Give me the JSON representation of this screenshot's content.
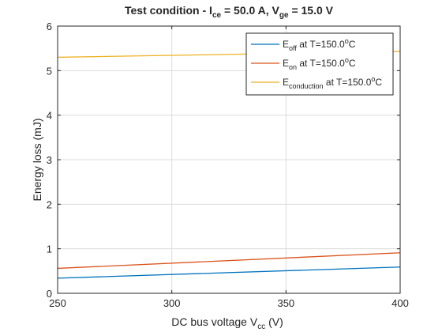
{
  "chart_data": {
    "type": "line",
    "title_parts": [
      "Test condition -  I",
      "ce",
      " = 50.0 A, V",
      "ge",
      " = 15.0 V"
    ],
    "xlabel_parts": [
      "DC bus voltage V",
      "cc",
      " (V)"
    ],
    "ylabel": "Energy loss (mJ)",
    "xlim": [
      250,
      400
    ],
    "ylim": [
      0,
      6
    ],
    "x_ticks": [
      250,
      300,
      350,
      400
    ],
    "y_ticks": [
      0,
      1,
      2,
      3,
      4,
      5,
      6
    ],
    "grid": true,
    "legend_position": "top-right",
    "series": [
      {
        "name_main": "E",
        "name_sub": "off",
        "name_rest": " at T=150.0",
        "name_sup": "o",
        "name_end": "C",
        "color": "#0072BD",
        "x": [
          250,
          400
        ],
        "values": [
          0.34,
          0.59
        ]
      },
      {
        "name_main": "E",
        "name_sub": "on",
        "name_rest": " at T=150.0",
        "name_sup": "o",
        "name_end": "C",
        "color": "#D95319",
        "x": [
          250,
          400
        ],
        "values": [
          0.56,
          0.91
        ]
      },
      {
        "name_main": "E",
        "name_sub": "conduction",
        "name_rest": " at T=150.0",
        "name_sup": "o",
        "name_end": "C",
        "color": "#EDB120",
        "x": [
          250,
          400
        ],
        "values": [
          5.3,
          5.43
        ]
      }
    ]
  }
}
